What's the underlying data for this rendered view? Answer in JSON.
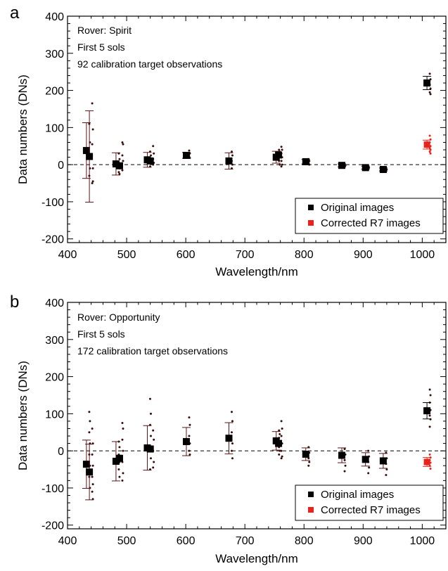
{
  "colors": {
    "original": "#000000",
    "corrected": "#e8231d",
    "errorbar_red": "#5a1414",
    "points_dark": "#3a0d0d"
  },
  "chart_data": [
    {
      "panel": "a",
      "type": "scatter",
      "xlabel": "Wavelength/nm",
      "ylabel": "Data numbers (DNs)",
      "xlim": [
        400,
        1040
      ],
      "ylim": [
        -210,
        400
      ],
      "xticks": [
        400,
        500,
        600,
        700,
        800,
        900,
        1000
      ],
      "yticks": [
        -200,
        -100,
        0,
        100,
        200,
        300,
        400
      ],
      "zero_line": "dashed",
      "annotation": [
        "Rover: Spirit",
        "First 5 sols",
        "92 calibration target observations"
      ],
      "legend": {
        "placement": "bottom-right",
        "entries": [
          "Original images",
          "Corrected R7 images"
        ]
      },
      "series": [
        {
          "name": "Original images",
          "points": [
            {
              "x": 432,
              "y": 38,
              "err": 75,
              "scatter": [
                110,
                60,
                20,
                -10,
                -30
              ]
            },
            {
              "x": 437,
              "y": 22,
              "err": 123,
              "scatter": [
                165,
                95,
                55,
                -10,
                -50,
                -45
              ]
            },
            {
              "x": 482,
              "y": 2,
              "err": 30,
              "scatter": [
                30,
                15,
                5,
                -10,
                -20,
                -25
              ]
            },
            {
              "x": 488,
              "y": -3,
              "err": 0,
              "scatter": [
                60,
                55,
                25,
                10,
                -15
              ]
            },
            {
              "x": 535,
              "y": 13,
              "err": 20,
              "scatter": [
                35,
                25,
                15,
                5,
                -5
              ]
            },
            {
              "x": 540,
              "y": 10,
              "err": 0,
              "scatter": [
                50,
                30,
                15,
                5,
                0
              ]
            },
            {
              "x": 601,
              "y": 25,
              "err": 8,
              "scatter": [
                38,
                30,
                22,
                18
              ]
            },
            {
              "x": 673,
              "y": 10,
              "err": 22,
              "scatter": [
                35,
                25,
                10,
                0,
                -10
              ]
            },
            {
              "x": 753,
              "y": 20,
              "err": 16,
              "scatter": [
                40,
                35,
                30,
                20,
                10,
                0
              ]
            },
            {
              "x": 757,
              "y": 26,
              "err": 0,
              "scatter": [
                48,
                40,
                30,
                20,
                10,
                0,
                -5
              ]
            },
            {
              "x": 803,
              "y": 8,
              "err": 6,
              "scatter": [
                15,
                10,
                5,
                0
              ]
            },
            {
              "x": 864,
              "y": -2,
              "err": 4,
              "scatter": [
                2,
                -2,
                -5
              ]
            },
            {
              "x": 904,
              "y": -8,
              "err": 4,
              "scatter": [
                -4,
                -8,
                -12
              ]
            },
            {
              "x": 934,
              "y": -13,
              "err": 4,
              "scatter": [
                -8,
                -13,
                -18
              ]
            },
            {
              "x": 1008,
              "y": 220,
              "err": 18,
              "scatter": [
                245,
                230,
                215,
                205,
                195,
                190
              ]
            }
          ]
        },
        {
          "name": "Corrected R7 images",
          "points": [
            {
              "x": 1008,
              "y": 54,
              "err": 12,
              "scatter": [
                78,
                68,
                60,
                50,
                45,
                40,
                35,
                30
              ]
            }
          ]
        }
      ]
    },
    {
      "panel": "b",
      "type": "scatter",
      "xlabel": "Wavelength/nm",
      "ylabel": "Data numbers (DNs)",
      "xlim": [
        400,
        1040
      ],
      "ylim": [
        -210,
        400
      ],
      "xticks": [
        400,
        500,
        600,
        700,
        800,
        900,
        1000
      ],
      "yticks": [
        -200,
        -100,
        0,
        100,
        200,
        300,
        400
      ],
      "zero_line": "dashed",
      "annotation": [
        "Rover: Opportunity",
        "First 5 sols",
        "172 calibration target observations"
      ],
      "legend": {
        "placement": "bottom-right",
        "entries": [
          "Original images",
          "Corrected R7 images"
        ]
      },
      "series": [
        {
          "name": "Original images",
          "points": [
            {
              "x": 432,
              "y": -36,
              "err": 65,
              "scatter": [
                105,
                80,
                50,
                20,
                -10,
                -40,
                -70,
                -100
              ]
            },
            {
              "x": 437,
              "y": -57,
              "err": 75,
              "scatter": [
                60,
                20,
                -10,
                -40,
                -70,
                -90,
                -110,
                -130
              ]
            },
            {
              "x": 482,
              "y": -28,
              "err": 53,
              "scatter": [
                25,
                10,
                -10,
                -30,
                -50,
                -70
              ]
            },
            {
              "x": 488,
              "y": -20,
              "err": 0,
              "scatter": [
                75,
                60,
                30,
                0,
                -30,
                -60,
                -80
              ]
            },
            {
              "x": 535,
              "y": 8,
              "err": 60,
              "scatter": [
                140,
                100,
                70,
                40,
                10,
                -20,
                -50
              ]
            },
            {
              "x": 540,
              "y": 5,
              "err": 0,
              "scatter": [
                55,
                30,
                0,
                -30,
                -45
              ]
            },
            {
              "x": 601,
              "y": 25,
              "err": 38,
              "scatter": [
                90,
                70,
                40,
                20,
                0,
                -10
              ]
            },
            {
              "x": 673,
              "y": 34,
              "err": 42,
              "scatter": [
                105,
                80,
                50,
                20,
                0,
                -20
              ]
            },
            {
              "x": 753,
              "y": 27,
              "err": 25,
              "scatter": [
                55,
                45,
                35,
                20,
                10,
                0,
                -10
              ]
            },
            {
              "x": 757,
              "y": 20,
              "err": 0,
              "scatter": [
                80,
                60,
                40,
                20,
                0,
                -15,
                -20
              ]
            },
            {
              "x": 803,
              "y": -9,
              "err": 17,
              "scatter": [
                10,
                -5,
                -20,
                -30,
                -40
              ]
            },
            {
              "x": 864,
              "y": -12,
              "err": 20,
              "scatter": [
                5,
                -10,
                -25,
                -40,
                -55
              ]
            },
            {
              "x": 904,
              "y": -23,
              "err": 18,
              "scatter": [
                0,
                -15,
                -30,
                -45,
                -60
              ]
            },
            {
              "x": 934,
              "y": -27,
              "err": 20,
              "scatter": [
                -5,
                -20,
                -35,
                -50,
                -65
              ]
            },
            {
              "x": 1008,
              "y": 108,
              "err": 22,
              "scatter": [
                165,
                150,
                130,
                110,
                95,
                85,
                65
              ]
            }
          ]
        },
        {
          "name": "Corrected R7 images",
          "points": [
            {
              "x": 1008,
              "y": -30,
              "err": 12,
              "scatter": [
                -10,
                -18,
                -25,
                -32,
                -40,
                -48
              ]
            }
          ]
        }
      ]
    }
  ]
}
